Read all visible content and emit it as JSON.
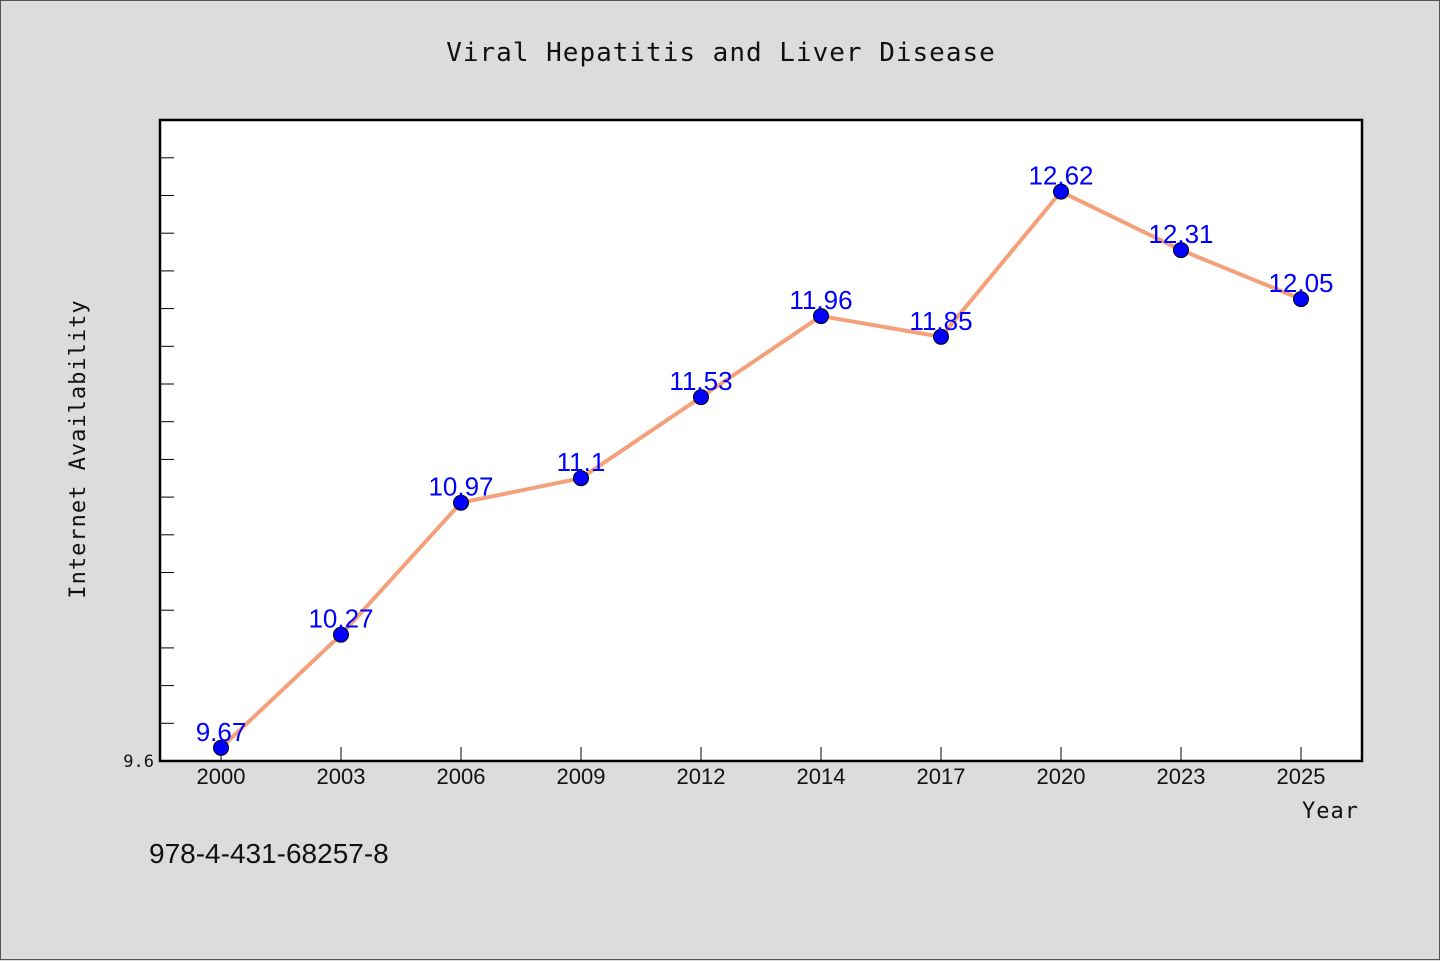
{
  "chart_data": {
    "type": "line",
    "title": "Viral Hepatitis and Liver Disease",
    "xlabel": "Year",
    "ylabel": "Internet Availability",
    "categories": [
      "2000",
      "2003",
      "2006",
      "2009",
      "2012",
      "2014",
      "2017",
      "2020",
      "2023",
      "2025"
    ],
    "series": [
      {
        "values": [
          9.67,
          10.27,
          10.97,
          11.1,
          11.53,
          11.96,
          11.85,
          12.62,
          12.31,
          12.05
        ],
        "data_labels": [
          "9.67",
          "10.27",
          "10.97",
          "11.1",
          "11.53",
          "11.96",
          "11.85",
          "12.62",
          "12.31",
          "12.05"
        ]
      }
    ],
    "ylim": [
      9.6,
      13.0
    ],
    "ytick_labels": [
      "9.6"
    ],
    "grid": false,
    "line_color": "#f4a07a",
    "marker_color": "#0000ff",
    "label_color": "#0000ff"
  },
  "footnote": "978-4-431-68257-8"
}
